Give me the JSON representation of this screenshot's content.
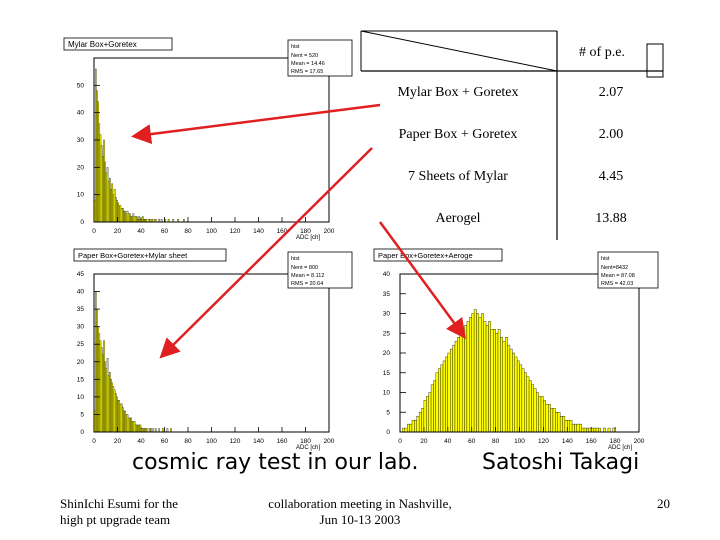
{
  "chart_data": [
    {
      "type": "bar",
      "title": "Mylar Box+Goretex",
      "stats": {
        "name": "hist",
        "lines": [
          "Nent = 520",
          "Mean = 14.46",
          "RMS = 17.65"
        ]
      },
      "xlabel": "ADC [ch]",
      "xlim": [
        0,
        200
      ],
      "ylim": [
        0,
        60
      ],
      "xticks": [
        "0",
        "20",
        "40",
        "60",
        "80",
        "100",
        "120",
        "140",
        "160",
        "180",
        "200"
      ],
      "yticks": [
        "0",
        "10",
        "20",
        "30",
        "40",
        "50"
      ],
      "bin_width": 1,
      "values": [
        8,
        56,
        48,
        44,
        36,
        32,
        28,
        24,
        30,
        22,
        18,
        20,
        15,
        16,
        12,
        14,
        10,
        12,
        9,
        8,
        7,
        6,
        6,
        5,
        5,
        4,
        4,
        3,
        4,
        3,
        3,
        2,
        2,
        3,
        2,
        2,
        2,
        1,
        2,
        1,
        1,
        2,
        1,
        1,
        1,
        0,
        1,
        1,
        0,
        1,
        0,
        1,
        1,
        0,
        0,
        1,
        0,
        1,
        0,
        0,
        1,
        0,
        0,
        1,
        0,
        0,
        0,
        1,
        0,
        0,
        0,
        1,
        0,
        0,
        0,
        0,
        1,
        0,
        0,
        0
      ]
    },
    {
      "type": "bar",
      "title": "Paper Box+Goretex+Mylar sheet",
      "stats": {
        "name": "hist",
        "lines": [
          "Nent = 800",
          "Mean = 8.112",
          "RMS = 20.64"
        ]
      },
      "xlabel": "ADC [ch]",
      "xlim": [
        0,
        200
      ],
      "ylim": [
        0,
        45
      ],
      "xticks": [
        "0",
        "20",
        "40",
        "60",
        "80",
        "100",
        "120",
        "140",
        "160",
        "180",
        "200"
      ],
      "yticks": [
        "0",
        "5",
        "10",
        "15",
        "20",
        "25",
        "30",
        "35",
        "40",
        "45"
      ],
      "bin_width": 1,
      "values": [
        6,
        40,
        35,
        30,
        28,
        26,
        24,
        22,
        26,
        20,
        18,
        21,
        16,
        17,
        15,
        14,
        13,
        12,
        11,
        10,
        9,
        9,
        8,
        8,
        7,
        6,
        6,
        5,
        5,
        4,
        4,
        4,
        3,
        3,
        3,
        2,
        2,
        2,
        2,
        2,
        1,
        1,
        1,
        1,
        1,
        1,
        0,
        1,
        1,
        0,
        1,
        0,
        1,
        0,
        0,
        1,
        0,
        0,
        1,
        0,
        0,
        0,
        1,
        0,
        0,
        1,
        0,
        0,
        0,
        0
      ]
    },
    {
      "type": "bar",
      "title": "Paper Box+Goretex+Aeroge",
      "stats": {
        "name": "hist",
        "lines": [
          "Nent=8432",
          "Mean = 87.08",
          "RMS = 42.03"
        ]
      },
      "xlabel": "ADC [ch]",
      "xlim": [
        0,
        200
      ],
      "ylim": [
        0,
        40
      ],
      "xticks": [
        "0",
        "20",
        "40",
        "60",
        "80",
        "100",
        "120",
        "140",
        "160",
        "180",
        "200"
      ],
      "yticks": [
        "0",
        "5",
        "10",
        "15",
        "20",
        "25",
        "30",
        "35",
        "40"
      ],
      "bin_width": 2,
      "values": [
        0,
        1,
        1,
        2,
        2,
        3,
        3,
        4,
        5,
        6,
        8,
        9,
        10,
        12,
        13,
        15,
        16,
        17,
        18,
        19,
        20,
        21,
        22,
        23,
        24,
        25,
        26,
        27,
        28,
        29,
        30,
        31,
        30,
        29,
        30,
        28,
        27,
        28,
        26,
        26,
        25,
        26,
        24,
        23,
        24,
        22,
        21,
        20,
        19,
        18,
        17,
        16,
        15,
        14,
        13,
        12,
        11,
        10,
        9,
        9,
        8,
        7,
        7,
        6,
        6,
        5,
        5,
        4,
        4,
        3,
        3,
        3,
        2,
        2,
        2,
        2,
        1,
        1,
        1,
        1,
        1,
        1,
        1,
        1,
        0,
        1,
        0,
        1,
        0,
        1,
        0,
        0,
        0,
        0,
        0,
        0,
        0,
        0,
        0,
        0
      ]
    }
  ],
  "results_table": {
    "header": "# of p.e.",
    "rows": [
      {
        "label": "Mylar Box + Goretex",
        "value": "2.07"
      },
      {
        "label": "Paper Box + Goretex",
        "value": "2.00"
      },
      {
        "label": "7 Sheets of Mylar",
        "value": "4.45"
      },
      {
        "label": "Aerogel",
        "value": "13.88"
      }
    ]
  },
  "caption": {
    "left": "cosmic ray test in our lab.",
    "right": "Satoshi Takagi"
  },
  "footer": {
    "author_line1": "ShinIchi Esumi for the",
    "author_line2": "high pt upgrade team",
    "meeting_line1": "collaboration meeting in Nashville,",
    "meeting_line2": "Jun 10-13 2003",
    "page_number": "20"
  },
  "colors": {
    "fill": "#ffff00",
    "line": "#000000",
    "arrow": "#e02020",
    "frame": "#c8c8c8"
  }
}
